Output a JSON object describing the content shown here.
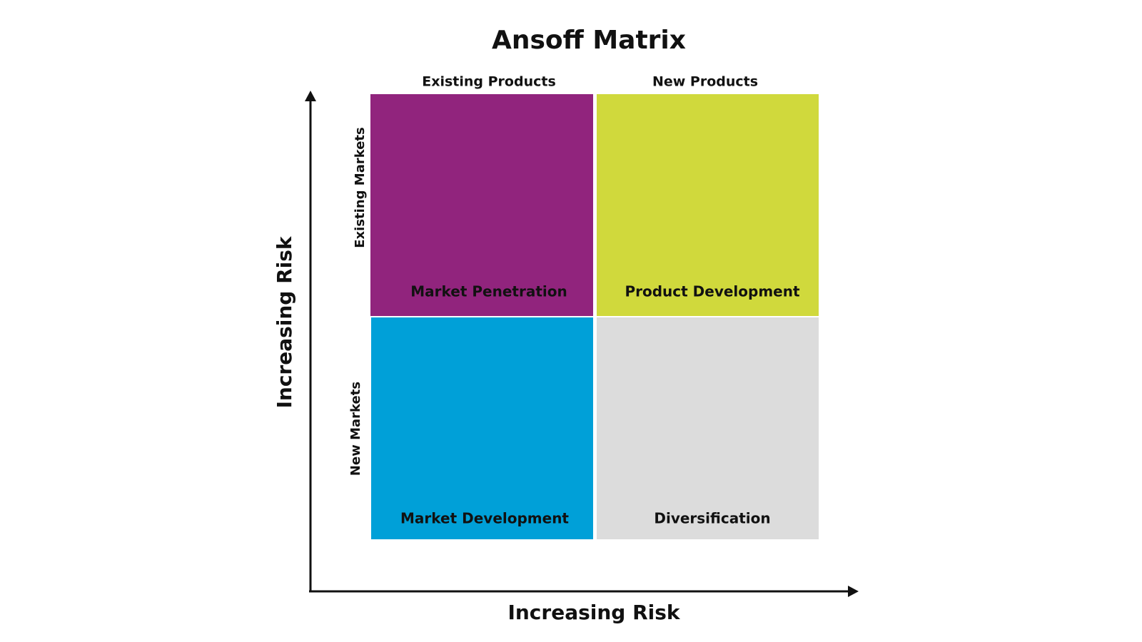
{
  "title": "Ansoff Matrix",
  "columns": [
    "Existing Products",
    "New Products"
  ],
  "rows": [
    "Existing Markets",
    "New Markets"
  ],
  "quadrants": [
    {
      "label": "Market Penetration"
    },
    {
      "label": "Product Development"
    },
    {
      "label": "Market Development"
    },
    {
      "label": "Diversification"
    }
  ],
  "x_axis_label": "Increasing Risk",
  "y_axis_label": "Increasing Risk"
}
